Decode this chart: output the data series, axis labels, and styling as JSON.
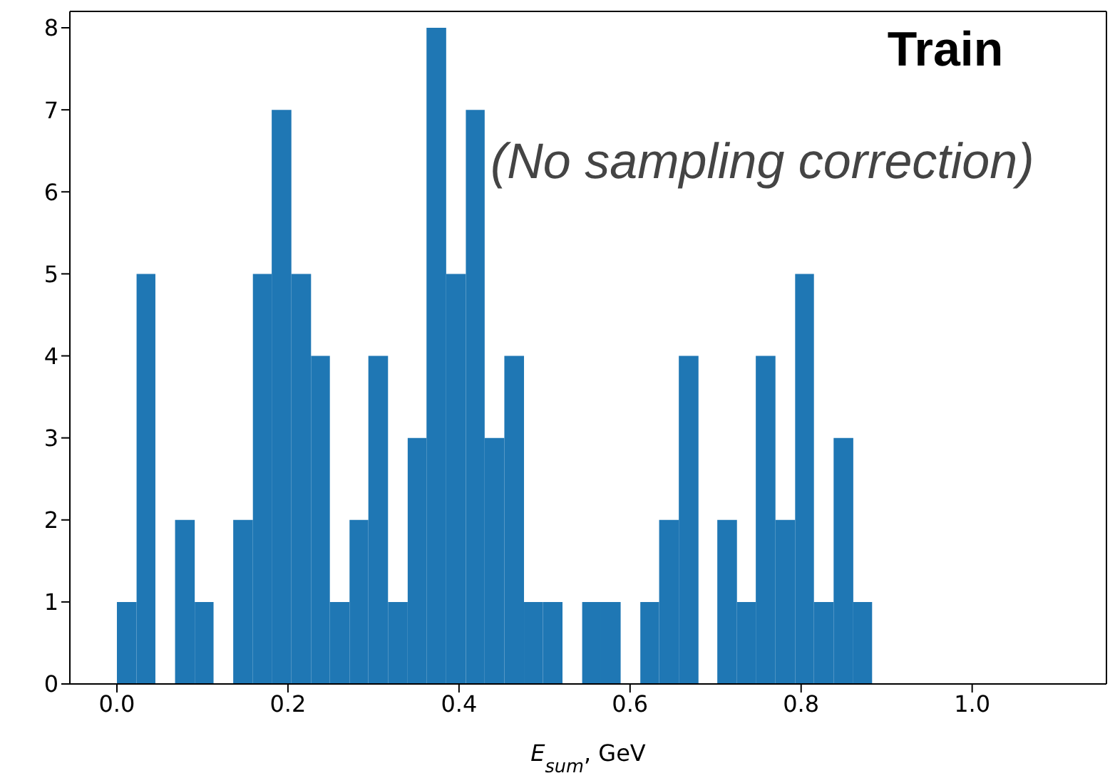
{
  "chart_data": {
    "type": "histogram",
    "title": "Train",
    "xlabel": "E$_{sum}$, GeV",
    "annotations": [
      "(No sampling correction)"
    ],
    "bins": [
      0,
      0.023,
      0.045,
      0.068,
      0.091,
      0.113,
      0.136,
      0.159,
      0.181,
      0.204,
      0.227,
      0.249,
      0.272,
      0.294,
      0.317,
      0.34,
      0.362,
      0.385,
      0.408,
      0.43,
      0.453,
      0.476,
      0.498,
      0.521,
      0.544,
      0.566,
      0.589,
      0.612,
      0.634,
      0.657,
      0.68,
      0.702,
      0.725,
      0.747,
      0.77,
      0.793,
      0.815,
      0.838,
      0.861,
      0.883
    ],
    "values": [
      1,
      5,
      0,
      2,
      1,
      0,
      2,
      5,
      7,
      5,
      4,
      1,
      2,
      4,
      1,
      3,
      8,
      5,
      7,
      3,
      4,
      1,
      1,
      0,
      1,
      1,
      0,
      1,
      2,
      4,
      0,
      2,
      1,
      4,
      2,
      5,
      1,
      3,
      1
    ],
    "color": "#1f77b4",
    "xlim": [
      -0.055,
      1.157
    ],
    "ylim": [
      0,
      8.2
    ],
    "xticks": [
      {
        "value": 0,
        "label": "0.0"
      },
      {
        "value": 0.2,
        "label": "0.2"
      },
      {
        "value": 0.4,
        "label": "0.4"
      },
      {
        "value": 0.6,
        "label": "0.6"
      },
      {
        "value": 0.8,
        "label": "0.8"
      },
      {
        "value": 1,
        "label": "1.0"
      }
    ],
    "yticks": [
      0,
      1,
      2,
      3,
      4,
      5,
      6,
      7,
      8
    ],
    "grid": false
  }
}
